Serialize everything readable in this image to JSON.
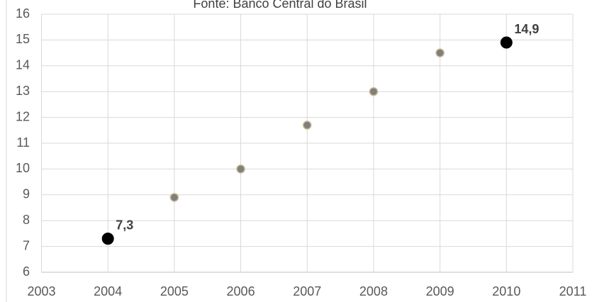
{
  "chart_data": {
    "type": "scatter",
    "title": "Fonte: Banco Central do Brasil",
    "x": [
      2004,
      2005,
      2006,
      2007,
      2008,
      2009,
      2010
    ],
    "values": [
      7.3,
      8.9,
      10.0,
      11.7,
      13.0,
      14.5,
      14.9
    ],
    "value_labels": [
      "7,3",
      null,
      null,
      null,
      null,
      null,
      "14,9"
    ],
    "colors": [
      "#000000",
      "#7f7f7f",
      "#7f7f7f",
      "#7f7f7f",
      "#7f7f7f",
      "#7f7f7f",
      "#000000"
    ],
    "xlim": [
      2003,
      2011
    ],
    "xticks": [
      2003,
      2004,
      2005,
      2006,
      2007,
      2008,
      2009,
      2010,
      2011
    ],
    "ylim": [
      6,
      16
    ],
    "yticks": [
      6,
      7,
      8,
      9,
      10,
      11,
      12,
      13,
      14,
      15,
      16
    ],
    "grid": true
  }
}
